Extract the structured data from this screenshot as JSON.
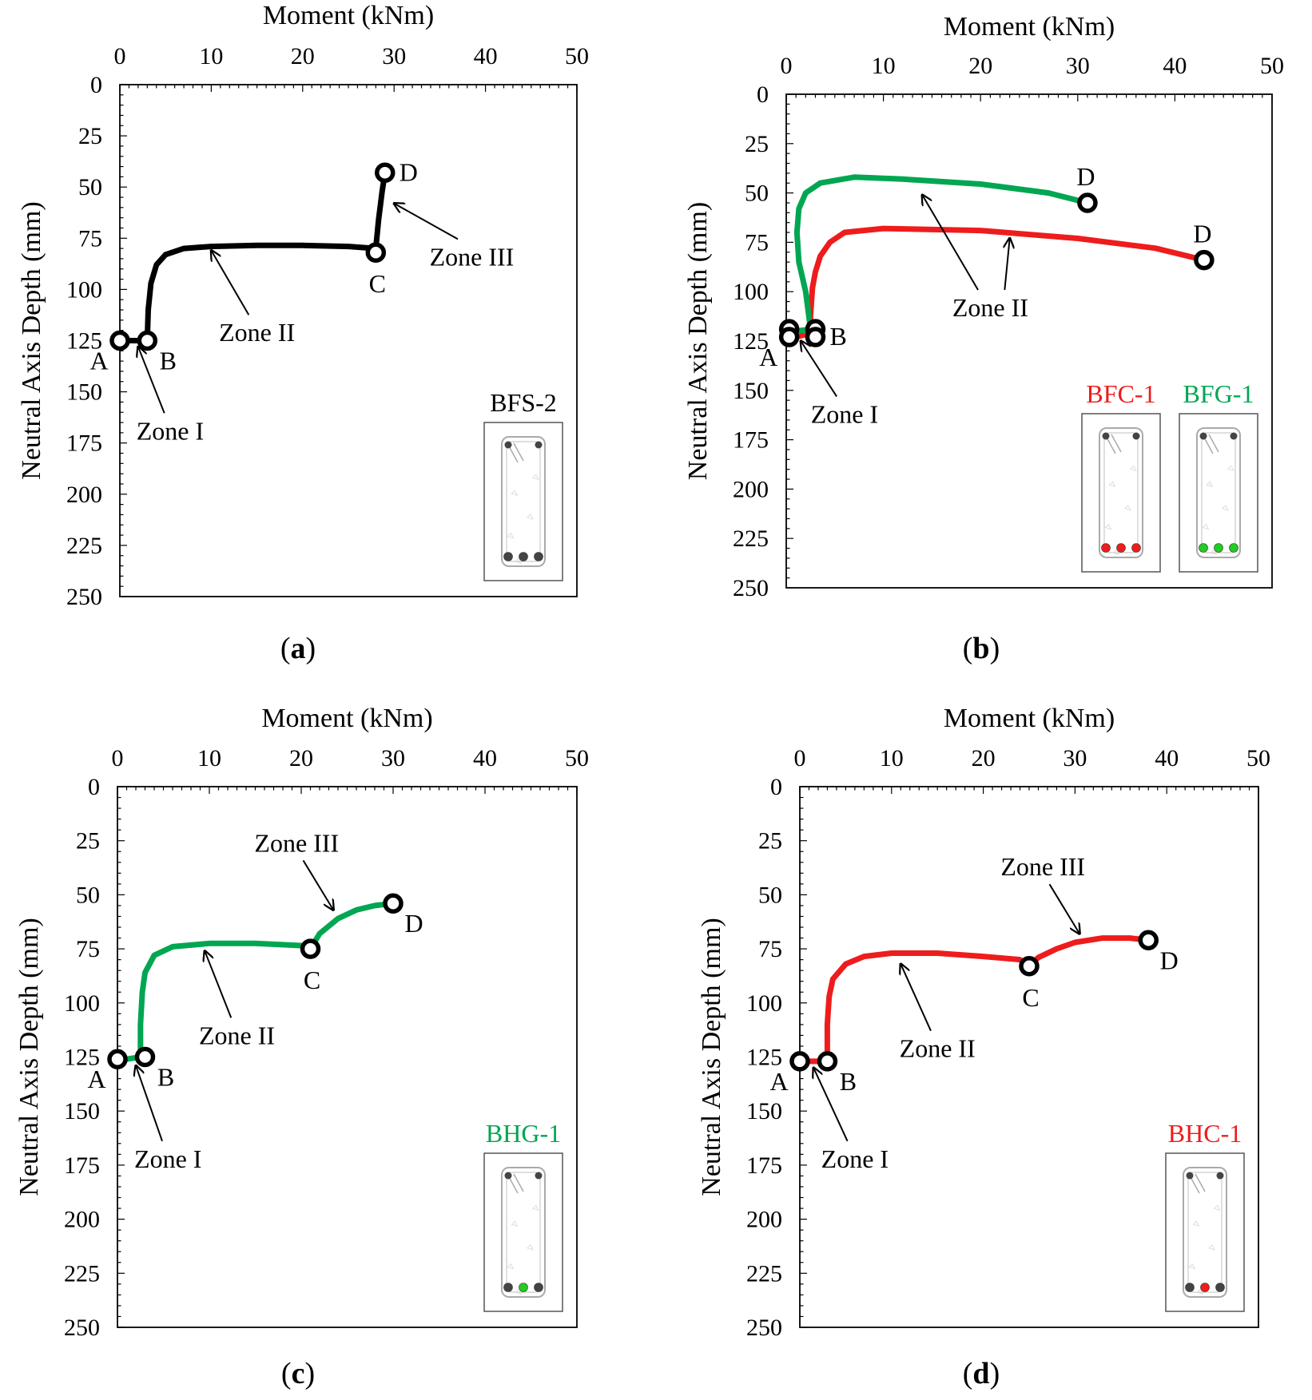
{
  "chart_data": [
    {
      "panel": "a",
      "type": "line",
      "xlabel": "Moment (kNm)",
      "ylabel": "Neutral Axis Depth (mm)",
      "xlim": [
        0,
        50
      ],
      "ylim": [
        0,
        250
      ],
      "y_inverted": true,
      "x_axis_position": "top",
      "xticks": [
        0,
        10,
        20,
        30,
        40,
        50
      ],
      "yticks": [
        0,
        25,
        50,
        75,
        100,
        125,
        150,
        175,
        200,
        225,
        250
      ],
      "series": [
        {
          "name": "BFS-2",
          "color": "#000000",
          "points": [
            [
              0,
              125
            ],
            [
              1,
              125
            ],
            [
              2,
              125
            ],
            [
              3,
              125
            ],
            [
              3.1,
              110
            ],
            [
              3.4,
              97
            ],
            [
              4,
              88
            ],
            [
              5,
              83
            ],
            [
              7,
              80
            ],
            [
              10,
              79
            ],
            [
              15,
              78.5
            ],
            [
              20,
              78.5
            ],
            [
              25,
              79
            ],
            [
              28,
              80
            ],
            [
              28.3,
              66
            ],
            [
              28.7,
              52
            ],
            [
              29,
              43
            ]
          ]
        }
      ],
      "markers": [
        {
          "label": "A",
          "x": 0,
          "y": 125,
          "label_pos": "below-left"
        },
        {
          "label": "B",
          "x": 3,
          "y": 125,
          "label_pos": "below-right"
        },
        {
          "label": "C",
          "x": 28,
          "y": 82,
          "label_pos": "below"
        },
        {
          "label": "D",
          "x": 29,
          "y": 43,
          "label_pos": "right"
        }
      ],
      "zones": [
        {
          "label": "Zone I",
          "text_x": 5.5,
          "text_y": 169,
          "arrow_x": 2,
          "arrow_y": 128
        },
        {
          "label": "Zone II",
          "text_x": 15,
          "text_y": 121,
          "arrow_x": 10,
          "arrow_y": 81
        },
        {
          "label": "Zone III",
          "text_x": 38.5,
          "text_y": 84,
          "arrow_x": 30,
          "arrow_y": 58
        }
      ],
      "specimens": [
        {
          "name": "BFS-2",
          "color": "#000000",
          "bar_colors": [
            "#444444",
            "#444444",
            "#444444"
          ]
        }
      ],
      "caption": "a"
    },
    {
      "panel": "b",
      "type": "line",
      "xlabel": "Moment (kNm)",
      "ylabel": "Neutral Axis Depth (mm)",
      "xlim": [
        0,
        50
      ],
      "ylim": [
        0,
        250
      ],
      "y_inverted": true,
      "x_axis_position": "top",
      "xticks": [
        0,
        10,
        20,
        30,
        40,
        50
      ],
      "yticks": [
        0,
        25,
        50,
        75,
        100,
        125,
        150,
        175,
        200,
        225,
        250
      ],
      "series": [
        {
          "name": "BFC-1",
          "color": "#ee1c1c",
          "points": [
            [
              0,
              123
            ],
            [
              1,
              123
            ],
            [
              2.5,
              121
            ],
            [
              2.5,
              112
            ],
            [
              2.7,
              98
            ],
            [
              3,
              90
            ],
            [
              3.5,
              82
            ],
            [
              4.5,
              75
            ],
            [
              6,
              70
            ],
            [
              10,
              68
            ],
            [
              20,
              69
            ],
            [
              30,
              73
            ],
            [
              38,
              78
            ],
            [
              43,
              84
            ]
          ]
        },
        {
          "name": "BFG-1",
          "color": "#00a651",
          "points": [
            [
              0,
              120
            ],
            [
              1,
              120
            ],
            [
              2.5,
              119
            ],
            [
              2,
              100
            ],
            [
              1.3,
              85
            ],
            [
              1.1,
              70
            ],
            [
              1.3,
              58
            ],
            [
              2,
              50
            ],
            [
              3.5,
              45
            ],
            [
              7,
              42
            ],
            [
              12,
              43
            ],
            [
              20,
              45.5
            ],
            [
              27,
              50
            ],
            [
              31,
              55
            ]
          ]
        }
      ],
      "markers": [
        {
          "label": "A",
          "x": 0.3,
          "y": 123,
          "label_pos": "below-left"
        },
        {
          "label": "B",
          "x": 3,
          "y": 123,
          "label_pos": "right"
        },
        {
          "label": "D",
          "x": 31,
          "y": 55,
          "label_pos": "above"
        },
        {
          "label": "D",
          "x": 43,
          "y": 84,
          "label_pos": "above"
        }
      ],
      "extra_markers": [
        {
          "x": 0.3,
          "y": 119
        },
        {
          "x": 3,
          "y": 119
        }
      ],
      "zones": [
        {
          "label": "Zone I",
          "text_x": 6,
          "text_y": 162,
          "arrow_x": 1.5,
          "arrow_y": 125
        },
        {
          "label": "Zone II",
          "text_x": 21,
          "text_y": 108,
          "arrow_x": 14,
          "arrow_y": 51,
          "arrow2_x": 23,
          "arrow2_y": 73
        }
      ],
      "specimens": [
        {
          "name": "BFC-1",
          "color": "#ee1c1c",
          "bar_colors": [
            "#ee1c1c",
            "#ee1c1c",
            "#ee1c1c"
          ]
        },
        {
          "name": "BFG-1",
          "color": "#00a651",
          "bar_colors": [
            "#22cc22",
            "#22cc22",
            "#22cc22"
          ]
        }
      ],
      "caption": "b"
    },
    {
      "panel": "c",
      "type": "line",
      "xlabel": "Moment (kNm)",
      "ylabel": "Neutral Axis Depth (mm)",
      "xlim": [
        0,
        50
      ],
      "ylim": [
        0,
        250
      ],
      "y_inverted": true,
      "x_axis_position": "top",
      "xticks": [
        0,
        10,
        20,
        30,
        40,
        50
      ],
      "yticks": [
        0,
        25,
        50,
        75,
        100,
        125,
        150,
        175,
        200,
        225,
        250
      ],
      "series": [
        {
          "name": "BHG-1",
          "color": "#00a651",
          "points": [
            [
              0,
              126
            ],
            [
              1,
              126
            ],
            [
              2.5,
              125
            ],
            [
              2.5,
              110
            ],
            [
              2.7,
              95
            ],
            [
              3,
              86
            ],
            [
              4,
              78
            ],
            [
              6,
              74
            ],
            [
              10,
              72.5
            ],
            [
              15,
              72.5
            ],
            [
              20,
              73.5
            ],
            [
              21,
              75
            ],
            [
              22,
              68
            ],
            [
              24,
              61
            ],
            [
              26,
              57
            ],
            [
              28,
              55
            ],
            [
              30,
              54
            ]
          ]
        }
      ],
      "markers": [
        {
          "label": "A",
          "x": 0,
          "y": 126,
          "label_pos": "below-left"
        },
        {
          "label": "B",
          "x": 3,
          "y": 125,
          "label_pos": "below-right"
        },
        {
          "label": "C",
          "x": 21,
          "y": 75,
          "label_pos": "below"
        },
        {
          "label": "D",
          "x": 30,
          "y": 54,
          "label_pos": "below-right"
        }
      ],
      "zones": [
        {
          "label": "Zone I",
          "text_x": 5.5,
          "text_y": 172,
          "arrow_x": 2,
          "arrow_y": 129
        },
        {
          "label": "Zone II",
          "text_x": 13,
          "text_y": 115,
          "arrow_x": 9.5,
          "arrow_y": 76
        },
        {
          "label": "Zone III",
          "text_x": 19.5,
          "text_y": 26,
          "arrow_x": 23.5,
          "arrow_y": 57
        }
      ],
      "specimens": [
        {
          "name": "BHG-1",
          "color": "#00a651",
          "bar_colors": [
            "#444444",
            "#22cc22",
            "#444444"
          ]
        }
      ],
      "caption": "c"
    },
    {
      "panel": "d",
      "type": "line",
      "xlabel": "Moment (kNm)",
      "ylabel": "Neutral Axis Depth (mm)",
      "xlim": [
        0,
        50
      ],
      "ylim": [
        0,
        250
      ],
      "y_inverted": true,
      "x_axis_position": "top",
      "xticks": [
        0,
        10,
        20,
        30,
        40,
        50
      ],
      "yticks": [
        0,
        25,
        50,
        75,
        100,
        125,
        150,
        175,
        200,
        225,
        250
      ],
      "series": [
        {
          "name": "BHC-1",
          "color": "#ee1c1c",
          "points": [
            [
              0,
              127
            ],
            [
              1,
              127
            ],
            [
              3,
              127
            ],
            [
              3,
              110
            ],
            [
              3.2,
              97
            ],
            [
              3.6,
              89
            ],
            [
              5,
              82
            ],
            [
              7,
              78.5
            ],
            [
              10,
              77
            ],
            [
              15,
              77
            ],
            [
              20,
              78.5
            ],
            [
              24,
              80
            ],
            [
              25,
              83
            ],
            [
              26,
              79
            ],
            [
              28,
              75
            ],
            [
              30,
              72
            ],
            [
              33,
              70
            ],
            [
              36,
              70
            ],
            [
              38,
              71
            ]
          ]
        }
      ],
      "markers": [
        {
          "label": "A",
          "x": 0,
          "y": 127,
          "label_pos": "below-left"
        },
        {
          "label": "B",
          "x": 3,
          "y": 127,
          "label_pos": "below-right"
        },
        {
          "label": "C",
          "x": 25,
          "y": 83,
          "label_pos": "below"
        },
        {
          "label": "D",
          "x": 38,
          "y": 71,
          "label_pos": "below-right"
        }
      ],
      "zones": [
        {
          "label": "Zone I",
          "text_x": 6,
          "text_y": 172,
          "arrow_x": 1.5,
          "arrow_y": 130
        },
        {
          "label": "Zone II",
          "text_x": 15,
          "text_y": 121,
          "arrow_x": 11,
          "arrow_y": 82
        },
        {
          "label": "Zone III",
          "text_x": 26.5,
          "text_y": 37,
          "arrow_x": 30.5,
          "arrow_y": 68
        }
      ],
      "specimens": [
        {
          "name": "BHC-1",
          "color": "#ee1c1c",
          "bar_colors": [
            "#444444",
            "#ee1c1c",
            "#444444"
          ]
        }
      ],
      "caption": "d"
    }
  ]
}
